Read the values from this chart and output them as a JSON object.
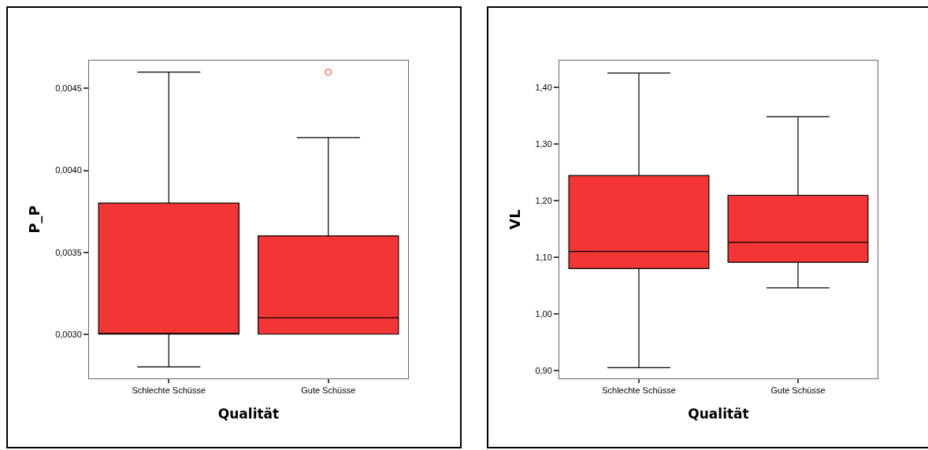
{
  "chart_data": [
    {
      "type": "box",
      "categories": [
        "Schlechte Schüsse",
        "Gute Schüsse"
      ],
      "color": "#f33535",
      "xlabel": "Qualität",
      "ylabel": "P_P",
      "boxes": [
        {
          "low": 0.0028,
          "q1": 0.003,
          "median": 0.003,
          "q3": 0.0038,
          "high": 0.0046
        },
        {
          "low": 0.003,
          "q1": 0.003,
          "median": 0.0031,
          "q3": 0.0036,
          "high": 0.0042,
          "outliers": [
            0.0046
          ]
        }
      ],
      "ylim": [
        0.00273,
        0.00467
      ],
      "yticks": [
        {
          "value": 0.003,
          "label": "0,0030"
        },
        {
          "value": 0.0035,
          "label": "0,0035"
        },
        {
          "value": 0.004,
          "label": "0,0040"
        },
        {
          "value": 0.0045,
          "label": "0,0045"
        }
      ]
    },
    {
      "type": "box",
      "categories": [
        "Schlechte Schüsse",
        "Gute Schüsse"
      ],
      "color": "#f33535",
      "xlabel": "Qualität",
      "ylabel": "VL",
      "boxes": [
        {
          "low": 0.905,
          "q1": 1.08,
          "median": 1.11,
          "q3": 1.244,
          "high": 1.425
        },
        {
          "low": 1.046,
          "q1": 1.091,
          "median": 1.126,
          "q3": 1.209,
          "high": 1.348
        }
      ],
      "ylim": [
        0.886,
        1.447
      ],
      "yticks": [
        {
          "value": 0.9,
          "label": "0,90"
        },
        {
          "value": 1.0,
          "label": "1,00"
        },
        {
          "value": 1.1,
          "label": "1,10"
        },
        {
          "value": 1.2,
          "label": "1,20"
        },
        {
          "value": 1.3,
          "label": "1,30"
        },
        {
          "value": 1.4,
          "label": "1,40"
        }
      ]
    }
  ]
}
